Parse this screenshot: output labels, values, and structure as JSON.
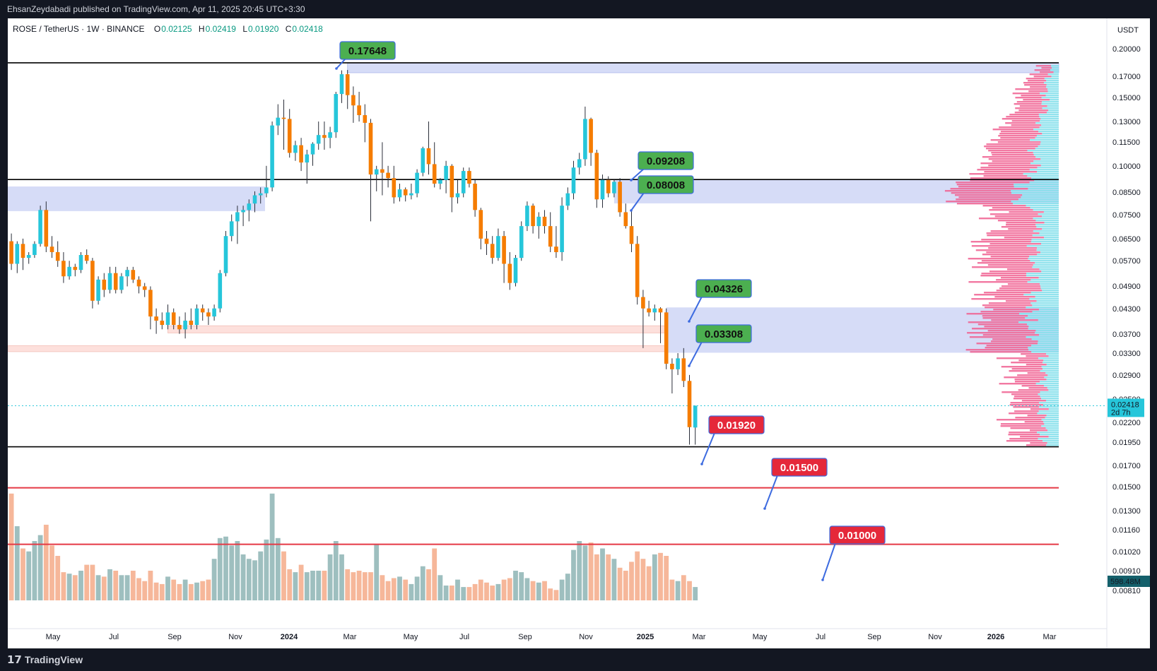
{
  "publish_bar": {
    "text": "EhsanZeydabadi published on TradingView.com, Apr 11, 2025 20:45 UTC+3:30"
  },
  "footer": {
    "logo_mark": "𝟭𝟳",
    "logo_text": "TradingView"
  },
  "header": {
    "symbol": "ROSE / TetherUS · 1W · BINANCE",
    "o_key": "O",
    "o_val": "0.02125",
    "h_key": "H",
    "h_val": "0.02419",
    "l_key": "L",
    "l_val": "0.01920",
    "c_key": "C",
    "c_val": "0.02418"
  },
  "price_axis": {
    "currency": "USDT",
    "ticks": [
      "0.20000",
      "0.17000",
      "0.15000",
      "0.13000",
      "0.11500",
      "0.10000",
      "0.08500",
      "0.07500",
      "0.06500",
      "0.05700",
      "0.04900",
      "0.04300",
      "0.03700",
      "0.03300",
      "0.02900",
      "0.02500",
      "0.02200",
      "0.01950",
      "0.01700",
      "0.01500",
      "0.01300",
      "0.01160",
      "0.01020",
      "0.00910",
      "0.00810"
    ],
    "last_price": "0.02418",
    "countdown": "2d 7h",
    "volume_label": "598.48M"
  },
  "time_axis": {
    "labels": [
      "May",
      "Jul",
      "Sep",
      "Nov",
      "2024",
      "Mar",
      "May",
      "Jul",
      "Sep",
      "Nov",
      "2025",
      "Mar",
      "May",
      "Jul",
      "Sep",
      "Nov",
      "2026",
      "Mar"
    ]
  },
  "callouts": [
    {
      "text": "0.17648",
      "color": "green"
    },
    {
      "text": "0.09208",
      "color": "green"
    },
    {
      "text": "0.08008",
      "color": "green"
    },
    {
      "text": "0.04326",
      "color": "green"
    },
    {
      "text": "0.03308",
      "color": "green"
    },
    {
      "text": "0.01920",
      "color": "red"
    },
    {
      "text": "0.01500",
      "color": "red"
    },
    {
      "text": "0.01000",
      "color": "red"
    }
  ],
  "colors": {
    "up": "#26c6da",
    "down": "#f57c00",
    "vol_up": "#9ebfbf",
    "vol_down": "#f6b79a",
    "zone_blue": "#d6dcf7",
    "zone_red": "#fde0dc",
    "callout_green": "#4caf50",
    "callout_red": "#e5283a",
    "hline_red": "#e53945",
    "hline_black": "#000000"
  },
  "chart_data": {
    "type": "candlestick",
    "symbol": "ROSE / TetherUS",
    "interval": "1W",
    "y_scale": "log",
    "ylim": [
      0.0078,
      0.215
    ],
    "candles": [
      {
        "o": 0.064,
        "h": 0.067,
        "l": 0.054,
        "c": 0.056
      },
      {
        "o": 0.056,
        "h": 0.064,
        "l": 0.053,
        "c": 0.063
      },
      {
        "o": 0.063,
        "h": 0.065,
        "l": 0.054,
        "c": 0.058
      },
      {
        "o": 0.058,
        "h": 0.06,
        "l": 0.056,
        "c": 0.059
      },
      {
        "o": 0.059,
        "h": 0.064,
        "l": 0.058,
        "c": 0.063
      },
      {
        "o": 0.063,
        "h": 0.079,
        "l": 0.062,
        "c": 0.077
      },
      {
        "o": 0.077,
        "h": 0.081,
        "l": 0.06,
        "c": 0.062
      },
      {
        "o": 0.062,
        "h": 0.066,
        "l": 0.058,
        "c": 0.06
      },
      {
        "o": 0.06,
        "h": 0.064,
        "l": 0.055,
        "c": 0.057
      },
      {
        "o": 0.057,
        "h": 0.06,
        "l": 0.05,
        "c": 0.052
      },
      {
        "o": 0.052,
        "h": 0.057,
        "l": 0.051,
        "c": 0.055
      },
      {
        "o": 0.055,
        "h": 0.056,
        "l": 0.052,
        "c": 0.054
      },
      {
        "o": 0.054,
        "h": 0.06,
        "l": 0.053,
        "c": 0.059
      },
      {
        "o": 0.059,
        "h": 0.061,
        "l": 0.056,
        "c": 0.057
      },
      {
        "o": 0.057,
        "h": 0.058,
        "l": 0.043,
        "c": 0.045
      },
      {
        "o": 0.045,
        "h": 0.052,
        "l": 0.044,
        "c": 0.051
      },
      {
        "o": 0.051,
        "h": 0.053,
        "l": 0.046,
        "c": 0.048
      },
      {
        "o": 0.048,
        "h": 0.055,
        "l": 0.047,
        "c": 0.053
      },
      {
        "o": 0.053,
        "h": 0.055,
        "l": 0.047,
        "c": 0.048
      },
      {
        "o": 0.048,
        "h": 0.053,
        "l": 0.047,
        "c": 0.052
      },
      {
        "o": 0.052,
        "h": 0.055,
        "l": 0.049,
        "c": 0.054
      },
      {
        "o": 0.054,
        "h": 0.055,
        "l": 0.05,
        "c": 0.051
      },
      {
        "o": 0.051,
        "h": 0.052,
        "l": 0.047,
        "c": 0.049
      },
      {
        "o": 0.049,
        "h": 0.05,
        "l": 0.046,
        "c": 0.048
      },
      {
        "o": 0.048,
        "h": 0.049,
        "l": 0.038,
        "c": 0.041
      },
      {
        "o": 0.041,
        "h": 0.043,
        "l": 0.037,
        "c": 0.04
      },
      {
        "o": 0.04,
        "h": 0.042,
        "l": 0.038,
        "c": 0.039
      },
      {
        "o": 0.039,
        "h": 0.044,
        "l": 0.038,
        "c": 0.042
      },
      {
        "o": 0.042,
        "h": 0.043,
        "l": 0.038,
        "c": 0.039
      },
      {
        "o": 0.039,
        "h": 0.041,
        "l": 0.037,
        "c": 0.038
      },
      {
        "o": 0.038,
        "h": 0.042,
        "l": 0.036,
        "c": 0.04
      },
      {
        "o": 0.04,
        "h": 0.043,
        "l": 0.038,
        "c": 0.039
      },
      {
        "o": 0.039,
        "h": 0.044,
        "l": 0.038,
        "c": 0.043
      },
      {
        "o": 0.043,
        "h": 0.044,
        "l": 0.04,
        "c": 0.042
      },
      {
        "o": 0.042,
        "h": 0.043,
        "l": 0.039,
        "c": 0.041
      },
      {
        "o": 0.041,
        "h": 0.044,
        "l": 0.04,
        "c": 0.043
      },
      {
        "o": 0.043,
        "h": 0.054,
        "l": 0.042,
        "c": 0.053
      },
      {
        "o": 0.053,
        "h": 0.068,
        "l": 0.052,
        "c": 0.066
      },
      {
        "o": 0.066,
        "h": 0.075,
        "l": 0.064,
        "c": 0.072
      },
      {
        "o": 0.072,
        "h": 0.079,
        "l": 0.063,
        "c": 0.076
      },
      {
        "o": 0.076,
        "h": 0.079,
        "l": 0.07,
        "c": 0.077
      },
      {
        "o": 0.077,
        "h": 0.082,
        "l": 0.072,
        "c": 0.08
      },
      {
        "o": 0.08,
        "h": 0.086,
        "l": 0.076,
        "c": 0.084
      },
      {
        "o": 0.084,
        "h": 0.088,
        "l": 0.08,
        "c": 0.085
      },
      {
        "o": 0.085,
        "h": 0.1,
        "l": 0.083,
        "c": 0.088
      },
      {
        "o": 0.088,
        "h": 0.13,
        "l": 0.086,
        "c": 0.127
      },
      {
        "o": 0.127,
        "h": 0.144,
        "l": 0.12,
        "c": 0.133
      },
      {
        "o": 0.133,
        "h": 0.148,
        "l": 0.11,
        "c": 0.132
      },
      {
        "o": 0.132,
        "h": 0.14,
        "l": 0.105,
        "c": 0.108
      },
      {
        "o": 0.108,
        "h": 0.116,
        "l": 0.103,
        "c": 0.113
      },
      {
        "o": 0.113,
        "h": 0.118,
        "l": 0.097,
        "c": 0.102
      },
      {
        "o": 0.102,
        "h": 0.11,
        "l": 0.09,
        "c": 0.107
      },
      {
        "o": 0.107,
        "h": 0.115,
        "l": 0.1,
        "c": 0.114
      },
      {
        "o": 0.114,
        "h": 0.13,
        "l": 0.11,
        "c": 0.12
      },
      {
        "o": 0.12,
        "h": 0.13,
        "l": 0.11,
        "c": 0.118
      },
      {
        "o": 0.118,
        "h": 0.126,
        "l": 0.111,
        "c": 0.122
      },
      {
        "o": 0.122,
        "h": 0.155,
        "l": 0.118,
        "c": 0.153
      },
      {
        "o": 0.153,
        "h": 0.176,
        "l": 0.145,
        "c": 0.172
      },
      {
        "o": 0.172,
        "h": 0.1764,
        "l": 0.14,
        "c": 0.152
      },
      {
        "o": 0.152,
        "h": 0.16,
        "l": 0.129,
        "c": 0.143
      },
      {
        "o": 0.143,
        "h": 0.155,
        "l": 0.13,
        "c": 0.135
      },
      {
        "o": 0.135,
        "h": 0.144,
        "l": 0.115,
        "c": 0.129
      },
      {
        "o": 0.129,
        "h": 0.132,
        "l": 0.072,
        "c": 0.095
      },
      {
        "o": 0.095,
        "h": 0.1,
        "l": 0.086,
        "c": 0.098
      },
      {
        "o": 0.098,
        "h": 0.115,
        "l": 0.084,
        "c": 0.096
      },
      {
        "o": 0.096,
        "h": 0.1,
        "l": 0.088,
        "c": 0.093
      },
      {
        "o": 0.093,
        "h": 0.1,
        "l": 0.08,
        "c": 0.083
      },
      {
        "o": 0.083,
        "h": 0.09,
        "l": 0.081,
        "c": 0.087
      },
      {
        "o": 0.087,
        "h": 0.088,
        "l": 0.081,
        "c": 0.084
      },
      {
        "o": 0.084,
        "h": 0.09,
        "l": 0.082,
        "c": 0.085
      },
      {
        "o": 0.085,
        "h": 0.098,
        "l": 0.083,
        "c": 0.096
      },
      {
        "o": 0.096,
        "h": 0.112,
        "l": 0.094,
        "c": 0.111
      },
      {
        "o": 0.111,
        "h": 0.13,
        "l": 0.095,
        "c": 0.101
      },
      {
        "o": 0.101,
        "h": 0.115,
        "l": 0.088,
        "c": 0.09
      },
      {
        "o": 0.09,
        "h": 0.093,
        "l": 0.087,
        "c": 0.092
      },
      {
        "o": 0.092,
        "h": 0.103,
        "l": 0.085,
        "c": 0.1
      },
      {
        "o": 0.1,
        "h": 0.101,
        "l": 0.076,
        "c": 0.083
      },
      {
        "o": 0.083,
        "h": 0.092,
        "l": 0.08,
        "c": 0.085
      },
      {
        "o": 0.085,
        "h": 0.099,
        "l": 0.083,
        "c": 0.097
      },
      {
        "o": 0.097,
        "h": 0.099,
        "l": 0.088,
        "c": 0.09
      },
      {
        "o": 0.09,
        "h": 0.092,
        "l": 0.074,
        "c": 0.077
      },
      {
        "o": 0.077,
        "h": 0.078,
        "l": 0.061,
        "c": 0.065
      },
      {
        "o": 0.065,
        "h": 0.068,
        "l": 0.059,
        "c": 0.063
      },
      {
        "o": 0.063,
        "h": 0.066,
        "l": 0.056,
        "c": 0.058
      },
      {
        "o": 0.058,
        "h": 0.069,
        "l": 0.057,
        "c": 0.066
      },
      {
        "o": 0.066,
        "h": 0.068,
        "l": 0.05,
        "c": 0.056
      },
      {
        "o": 0.056,
        "h": 0.06,
        "l": 0.048,
        "c": 0.05
      },
      {
        "o": 0.05,
        "h": 0.059,
        "l": 0.049,
        "c": 0.058
      },
      {
        "o": 0.058,
        "h": 0.072,
        "l": 0.057,
        "c": 0.07
      },
      {
        "o": 0.07,
        "h": 0.081,
        "l": 0.068,
        "c": 0.079
      },
      {
        "o": 0.079,
        "h": 0.08,
        "l": 0.067,
        "c": 0.07
      },
      {
        "o": 0.07,
        "h": 0.076,
        "l": 0.065,
        "c": 0.074
      },
      {
        "o": 0.074,
        "h": 0.077,
        "l": 0.067,
        "c": 0.07
      },
      {
        "o": 0.07,
        "h": 0.076,
        "l": 0.06,
        "c": 0.062
      },
      {
        "o": 0.062,
        "h": 0.07,
        "l": 0.058,
        "c": 0.06
      },
      {
        "o": 0.06,
        "h": 0.083,
        "l": 0.057,
        "c": 0.079
      },
      {
        "o": 0.079,
        "h": 0.088,
        "l": 0.077,
        "c": 0.085
      },
      {
        "o": 0.085,
        "h": 0.103,
        "l": 0.082,
        "c": 0.099
      },
      {
        "o": 0.099,
        "h": 0.108,
        "l": 0.095,
        "c": 0.104
      },
      {
        "o": 0.104,
        "h": 0.142,
        "l": 0.1,
        "c": 0.132
      },
      {
        "o": 0.132,
        "h": 0.133,
        "l": 0.1,
        "c": 0.108
      },
      {
        "o": 0.108,
        "h": 0.11,
        "l": 0.078,
        "c": 0.082
      },
      {
        "o": 0.082,
        "h": 0.095,
        "l": 0.078,
        "c": 0.092
      },
      {
        "o": 0.092,
        "h": 0.094,
        "l": 0.083,
        "c": 0.085
      },
      {
        "o": 0.085,
        "h": 0.0921,
        "l": 0.083,
        "c": 0.091
      },
      {
        "o": 0.091,
        "h": 0.093,
        "l": 0.074,
        "c": 0.076
      },
      {
        "o": 0.076,
        "h": 0.08,
        "l": 0.069,
        "c": 0.07
      },
      {
        "o": 0.07,
        "h": 0.077,
        "l": 0.06,
        "c": 0.063
      },
      {
        "o": 0.063,
        "h": 0.066,
        "l": 0.044,
        "c": 0.046
      },
      {
        "o": 0.046,
        "h": 0.048,
        "l": 0.034,
        "c": 0.043
      },
      {
        "o": 0.043,
        "h": 0.045,
        "l": 0.041,
        "c": 0.042
      },
      {
        "o": 0.042,
        "h": 0.044,
        "l": 0.04,
        "c": 0.043
      },
      {
        "o": 0.043,
        "h": 0.0433,
        "l": 0.035,
        "c": 0.042
      },
      {
        "o": 0.042,
        "h": 0.043,
        "l": 0.03,
        "c": 0.031
      },
      {
        "o": 0.031,
        "h": 0.032,
        "l": 0.026,
        "c": 0.03
      },
      {
        "o": 0.03,
        "h": 0.033,
        "l": 0.029,
        "c": 0.032
      },
      {
        "o": 0.032,
        "h": 0.034,
        "l": 0.027,
        "c": 0.028
      },
      {
        "o": 0.028,
        "h": 0.029,
        "l": 0.0192,
        "c": 0.0213
      },
      {
        "o": 0.02125,
        "h": 0.02419,
        "l": 0.0192,
        "c": 0.02418
      }
    ],
    "volume_scale": [
      0,
      1
    ],
    "volumes": [
      0.72,
      0.5,
      0.35,
      0.33,
      0.4,
      0.44,
      0.51,
      0.37,
      0.3,
      0.19,
      0.18,
      0.17,
      0.2,
      0.24,
      0.24,
      0.17,
      0.16,
      0.21,
      0.2,
      0.17,
      0.17,
      0.2,
      0.15,
      0.13,
      0.2,
      0.12,
      0.11,
      0.16,
      0.14,
      0.11,
      0.14,
      0.11,
      0.12,
      0.13,
      0.14,
      0.28,
      0.42,
      0.43,
      0.37,
      0.4,
      0.31,
      0.28,
      0.27,
      0.33,
      0.41,
      0.72,
      0.42,
      0.33,
      0.21,
      0.19,
      0.24,
      0.19,
      0.2,
      0.2,
      0.2,
      0.31,
      0.4,
      0.31,
      0.21,
      0.19,
      0.2,
      0.19,
      0.19,
      0.38,
      0.17,
      0.13,
      0.15,
      0.16,
      0.14,
      0.11,
      0.16,
      0.23,
      0.21,
      0.35,
      0.17,
      0.1,
      0.1,
      0.14,
      0.09,
      0.09,
      0.11,
      0.14,
      0.12,
      0.1,
      0.11,
      0.14,
      0.15,
      0.2,
      0.19,
      0.15,
      0.13,
      0.12,
      0.13,
      0.08,
      0.07,
      0.14,
      0.18,
      0.34,
      0.4,
      0.37,
      0.39,
      0.31,
      0.35,
      0.31,
      0.28,
      0.22,
      0.2,
      0.26,
      0.33,
      0.28,
      0.23,
      0.31,
      0.32,
      0.3,
      0.14,
      0.13,
      0.17,
      0.13,
      0.09
    ],
    "levels": [
      0.17648,
      0.09208,
      0.08008,
      0.04326,
      0.03308,
      0.0192,
      0.015,
      0.01
    ]
  }
}
